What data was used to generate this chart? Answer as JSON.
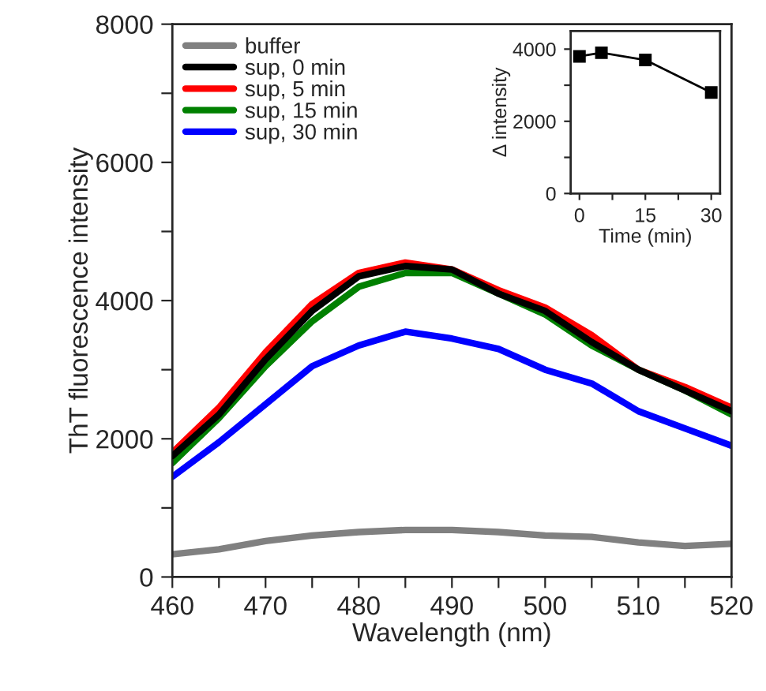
{
  "chart_data": [
    {
      "type": "line",
      "xlabel": "Wavelength (nm)",
      "ylabel": "ThT fluorescence intensity",
      "x": [
        460,
        465,
        470,
        475,
        480,
        485,
        490,
        495,
        500,
        505,
        510,
        515,
        520
      ],
      "series": [
        {
          "name": "buffer",
          "color": "#808080",
          "values": [
            330,
            400,
            520,
            600,
            650,
            680,
            680,
            650,
            600,
            580,
            500,
            450,
            480
          ]
        },
        {
          "name": "sup, 0 min",
          "color": "#000000",
          "values": [
            1750,
            2350,
            3150,
            3850,
            4350,
            4500,
            4450,
            4100,
            3850,
            3400,
            3000,
            2700,
            2400
          ]
        },
        {
          "name": "sup, 5 min",
          "color": "#ff0000",
          "values": [
            1800,
            2450,
            3250,
            3950,
            4400,
            4550,
            4450,
            4150,
            3900,
            3500,
            3000,
            2750,
            2450
          ]
        },
        {
          "name": "sup, 15 min",
          "color": "#008000",
          "values": [
            1650,
            2300,
            3050,
            3700,
            4200,
            4400,
            4400,
            4100,
            3800,
            3350,
            3000,
            2700,
            2350
          ]
        },
        {
          "name": "sup, 30 min",
          "color": "#0000ff",
          "values": [
            1450,
            1950,
            2500,
            3050,
            3350,
            3550,
            3450,
            3300,
            3000,
            2800,
            2400,
            2150,
            1900
          ]
        }
      ],
      "xlim": [
        460,
        520
      ],
      "ylim": [
        0,
        8000
      ],
      "xticks": [
        460,
        {
          "value": 465,
          "label": null
        },
        470,
        {
          "value": 475,
          "label": null
        },
        480,
        {
          "value": 485,
          "label": null
        },
        490,
        {
          "value": 495,
          "label": null
        },
        500,
        {
          "value": 505,
          "label": null
        },
        510,
        {
          "value": 515,
          "label": null
        },
        520
      ],
      "yticks": [
        0,
        {
          "value": 1000,
          "label": null
        },
        2000,
        {
          "value": 3000,
          "label": null
        },
        4000,
        {
          "value": 5000,
          "label": null
        },
        6000,
        {
          "value": 7000,
          "label": null
        },
        8000
      ],
      "legend": "top left",
      "grid": false,
      "line_style": "solid",
      "marker": "none"
    },
    {
      "type": "line",
      "xlabel": "Time (min)",
      "ylabel": "Δ intensity",
      "x": [
        0,
        5,
        15,
        30
      ],
      "series": [
        {
          "color": "#000000",
          "values": [
            3800,
            3900,
            3700,
            2800
          ]
        }
      ],
      "xlim": [
        -2,
        32
      ],
      "ylim": [
        0,
        4500
      ],
      "xticks": [
        0,
        {
          "value": 7.5,
          "label": null
        },
        15,
        {
          "value": 22.5,
          "label": null
        },
        30
      ],
      "yticks": [
        0,
        {
          "value": 1000,
          "label": null
        },
        2000,
        {
          "value": 3000,
          "label": null
        },
        4000
      ],
      "grid": false,
      "line_style": "solid",
      "marker": "square"
    }
  ]
}
